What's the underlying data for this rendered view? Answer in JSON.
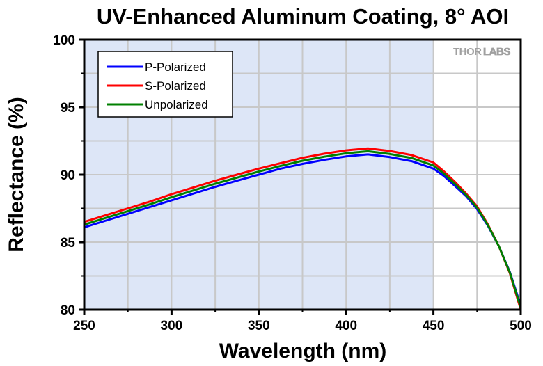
{
  "chart_data": {
    "type": "line",
    "title": "UV-Enhanced Aluminum Coating, 8° AOI",
    "xlabel": "Wavelength (nm)",
    "ylabel": "Reflectance (%)",
    "xlim": [
      250,
      500
    ],
    "ylim": [
      80,
      100
    ],
    "xticks": [
      250,
      300,
      350,
      400,
      450,
      500
    ],
    "xtick_labels": [
      "250",
      "300",
      "350",
      "400",
      "450",
      "500"
    ],
    "xminor": [
      275,
      325,
      375,
      425,
      475
    ],
    "yticks": [
      80,
      85,
      90,
      95,
      100
    ],
    "ytick_labels": [
      "80",
      "85",
      "90",
      "95",
      "100"
    ],
    "yminor": [
      82.5,
      87.5,
      92.5,
      97.5
    ],
    "grid": true,
    "shaded_region": {
      "x": [
        250,
        450
      ],
      "color": "#dde6f7"
    },
    "legend": {
      "placement": "top-left"
    },
    "watermark": {
      "bold": "THOR",
      "light": "LABS"
    },
    "x": [
      250,
      262.5,
      275,
      287.5,
      300,
      312.5,
      325,
      337.5,
      350,
      362.5,
      375,
      387.5,
      400,
      412.5,
      425,
      437.5,
      450,
      456,
      462.5,
      468.75,
      475,
      481.25,
      487.5,
      493.75,
      500
    ],
    "series": [
      {
        "name": "P-Polarized",
        "color": "#0000ff",
        "values": [
          86.1,
          86.6,
          87.1,
          87.6,
          88.1,
          88.6,
          89.1,
          89.55,
          90.0,
          90.45,
          90.8,
          91.1,
          91.35,
          91.5,
          91.3,
          91.0,
          90.45,
          89.9,
          89.15,
          88.4,
          87.45,
          86.2,
          84.7,
          82.8,
          80.3
        ]
      },
      {
        "name": "S-Polarized",
        "color": "#ff0000",
        "values": [
          86.5,
          87.0,
          87.5,
          88.0,
          88.55,
          89.05,
          89.55,
          90.0,
          90.45,
          90.85,
          91.25,
          91.55,
          91.8,
          91.95,
          91.75,
          91.45,
          90.9,
          90.25,
          89.45,
          88.6,
          87.65,
          86.3,
          84.7,
          82.7,
          80.0
        ]
      },
      {
        "name": "Unpolarized",
        "color": "#008000",
        "values": [
          86.3,
          86.8,
          87.3,
          87.8,
          88.33,
          88.83,
          89.33,
          89.78,
          90.23,
          90.65,
          91.03,
          91.33,
          91.58,
          91.73,
          91.53,
          91.23,
          90.68,
          90.08,
          89.3,
          88.5,
          87.55,
          86.25,
          84.7,
          82.75,
          80.15
        ]
      }
    ]
  }
}
